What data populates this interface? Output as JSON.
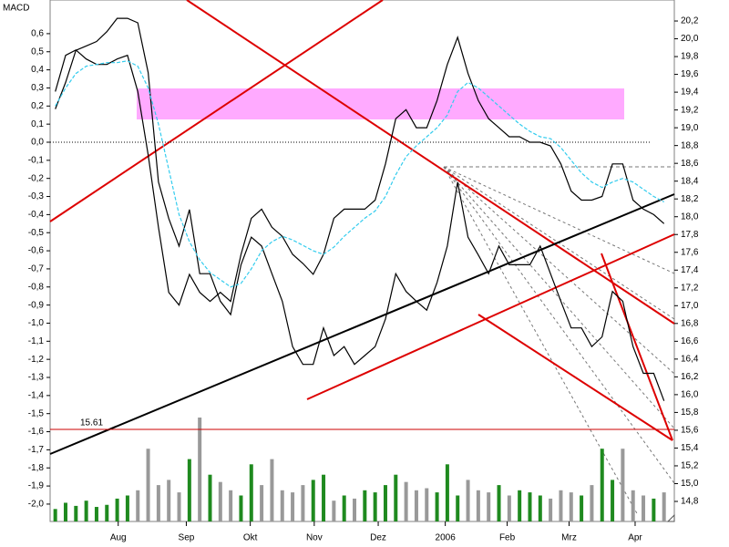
{
  "chart_data": {
    "type": "line",
    "indicator_label": "MACD",
    "xlim": [
      -0.5,
      60
    ],
    "xticks": [
      {
        "value": 6.1,
        "label": "Aug"
      },
      {
        "value": 12.7,
        "label": "Sep"
      },
      {
        "value": 18.9,
        "label": "Okt"
      },
      {
        "value": 25.1,
        "label": "Nov"
      },
      {
        "value": 31.3,
        "label": "Dez"
      },
      {
        "value": 37.8,
        "label": "2006"
      },
      {
        "value": 43.8,
        "label": "Feb"
      },
      {
        "value": 49.8,
        "label": "Mrz"
      },
      {
        "value": 56.2,
        "label": "Apr"
      }
    ],
    "ylim": [
      -2.086,
      0.786
    ],
    "yticks": [
      {
        "value": 0.6,
        "label": "0,6"
      },
      {
        "value": 0.5,
        "label": "0,5"
      },
      {
        "value": 0.4,
        "label": "0,4"
      },
      {
        "value": 0.3,
        "label": "0,3"
      },
      {
        "value": 0.2,
        "label": "0,2"
      },
      {
        "value": 0.1,
        "label": "0,1"
      },
      {
        "value": 0.0,
        "label": "0,0"
      },
      {
        "value": -0.1,
        "label": "-0,1"
      },
      {
        "value": -0.2,
        "label": "-0,2"
      },
      {
        "value": -0.3,
        "label": "-0,3"
      },
      {
        "value": -0.4,
        "label": "-0,4"
      },
      {
        "value": -0.5,
        "label": "-0,5"
      },
      {
        "value": -0.6,
        "label": "-0,6"
      },
      {
        "value": -0.7,
        "label": "-0,7"
      },
      {
        "value": -0.8,
        "label": "-0,8"
      },
      {
        "value": -0.9,
        "label": "-0,9"
      },
      {
        "value": -1.0,
        "label": "-1,0"
      },
      {
        "value": -1.1,
        "label": "-1,1"
      },
      {
        "value": -1.2,
        "label": "-1,2"
      },
      {
        "value": -1.3,
        "label": "-1,3"
      },
      {
        "value": -1.4,
        "label": "-1,4"
      },
      {
        "value": -1.5,
        "label": "-1,5"
      },
      {
        "value": -1.6,
        "label": "-1,6"
      },
      {
        "value": -1.7,
        "label": "-1,7"
      },
      {
        "value": -1.8,
        "label": "-1,8"
      },
      {
        "value": -1.9,
        "label": "-1,9"
      },
      {
        "value": -2.0,
        "label": "-2,0"
      }
    ],
    "y2lim": [
      14.595,
      20.436
    ],
    "y2ticks": [
      {
        "value": 20.2,
        "label": "20,2"
      },
      {
        "value": 20.0,
        "label": "20,0"
      },
      {
        "value": 19.8,
        "label": "19,8"
      },
      {
        "value": 19.6,
        "label": "19,6"
      },
      {
        "value": 19.4,
        "label": "19,4"
      },
      {
        "value": 19.2,
        "label": "19,2"
      },
      {
        "value": 19.0,
        "label": "19,0"
      },
      {
        "value": 18.8,
        "label": "18,8"
      },
      {
        "value": 18.6,
        "label": "18,6"
      },
      {
        "value": 18.4,
        "label": "18,4"
      },
      {
        "value": 18.2,
        "label": "18,2"
      },
      {
        "value": 18.0,
        "label": "18,0"
      },
      {
        "value": 17.8,
        "label": "17,8"
      },
      {
        "value": 17.6,
        "label": "17,6"
      },
      {
        "value": 17.4,
        "label": "17,4"
      },
      {
        "value": 17.2,
        "label": "17,2"
      },
      {
        "value": 17.0,
        "label": "17,0"
      },
      {
        "value": 16.8,
        "label": "16,8"
      },
      {
        "value": 16.6,
        "label": "16,6"
      },
      {
        "value": 16.4,
        "label": "16,4"
      },
      {
        "value": 16.2,
        "label": "16,2"
      },
      {
        "value": 16.0,
        "label": "16,0"
      },
      {
        "value": 15.8,
        "label": "15,8"
      },
      {
        "value": 15.6,
        "label": "15,6"
      },
      {
        "value": 15.4,
        "label": "15,4"
      },
      {
        "value": 15.2,
        "label": "15,2"
      },
      {
        "value": 15.0,
        "label": "15,0"
      },
      {
        "value": 14.8,
        "label": "14,8"
      }
    ],
    "zero_line": true,
    "series": [
      {
        "color": "#000000",
        "axis": "y2",
        "style": "solid",
        "values": [
          19.21,
          19.51,
          19.87,
          19.92,
          19.97,
          20.08,
          20.23,
          20.23,
          20.18,
          19.62,
          18.39,
          17.98,
          17.67,
          18.08,
          17.36,
          17.36,
          17.05,
          16.9,
          17.46,
          17.77,
          17.67,
          17.36,
          17.05,
          16.54,
          16.34,
          16.34,
          16.75,
          16.44,
          16.54,
          16.34,
          16.44,
          16.54,
          16.85,
          17.36,
          17.16,
          17.05,
          16.95,
          17.26,
          17.67,
          18.39,
          17.77,
          17.57,
          17.36,
          17.67,
          17.46,
          17.46,
          17.46,
          17.67,
          17.36,
          17.05,
          16.75,
          16.75,
          16.54,
          16.65,
          17.16,
          17.05,
          16.54,
          16.24,
          16.24,
          15.93
        ]
      },
      {
        "color": "#000000",
        "axis": "y",
        "style": "solid",
        "values": [
          0.28,
          0.48,
          0.51,
          0.46,
          0.43,
          0.43,
          0.46,
          0.48,
          0.28,
          -0.07,
          -0.47,
          -0.83,
          -0.9,
          -0.73,
          -0.83,
          -0.88,
          -0.83,
          -0.88,
          -0.62,
          -0.42,
          -0.37,
          -0.47,
          -0.52,
          -0.62,
          -0.67,
          -0.73,
          -0.62,
          -0.42,
          -0.37,
          -0.37,
          -0.37,
          -0.32,
          -0.12,
          0.13,
          0.18,
          0.08,
          0.08,
          0.23,
          0.43,
          0.58,
          0.38,
          0.23,
          0.13,
          0.08,
          0.03,
          0.03,
          0.0,
          0.0,
          -0.02,
          -0.12,
          -0.27,
          -0.32,
          -0.32,
          -0.3,
          -0.12,
          -0.12,
          -0.32,
          -0.37,
          -0.4,
          -0.45
        ]
      },
      {
        "color": "#33ccee",
        "axis": "y",
        "style": "dashed",
        "values": [
          0.2,
          0.3,
          0.38,
          0.42,
          0.43,
          0.44,
          0.44,
          0.45,
          0.42,
          0.3,
          0.1,
          -0.15,
          -0.4,
          -0.55,
          -0.65,
          -0.72,
          -0.76,
          -0.8,
          -0.78,
          -0.7,
          -0.6,
          -0.55,
          -0.52,
          -0.54,
          -0.57,
          -0.6,
          -0.62,
          -0.58,
          -0.52,
          -0.47,
          -0.42,
          -0.38,
          -0.3,
          -0.18,
          -0.08,
          -0.02,
          0.03,
          0.08,
          0.15,
          0.28,
          0.33,
          0.3,
          0.25,
          0.2,
          0.15,
          0.1,
          0.06,
          0.03,
          0.02,
          -0.03,
          -0.1,
          -0.17,
          -0.22,
          -0.25,
          -0.22,
          -0.2,
          -0.22,
          -0.26,
          -0.3,
          -0.33
        ]
      }
    ],
    "volume": {
      "lim": [
        0,
        100
      ],
      "up_color": "#1f8a1f",
      "down_color": "#999999",
      "values": [
        12,
        18,
        15,
        20,
        14,
        16,
        22,
        25,
        30,
        70,
        35,
        40,
        28,
        60,
        100,
        45,
        38,
        30,
        25,
        55,
        35,
        60,
        30,
        28,
        35,
        40,
        45,
        20,
        25,
        22,
        30,
        28,
        35,
        45,
        38,
        30,
        32,
        28,
        55,
        25,
        40,
        30,
        28,
        35,
        25,
        30,
        28,
        25,
        22,
        30,
        28,
        25,
        35,
        70,
        40,
        70,
        30,
        25,
        22,
        28
      ]
    },
    "support_level": 15.61,
    "support_color": "#cc0000"
  }
}
